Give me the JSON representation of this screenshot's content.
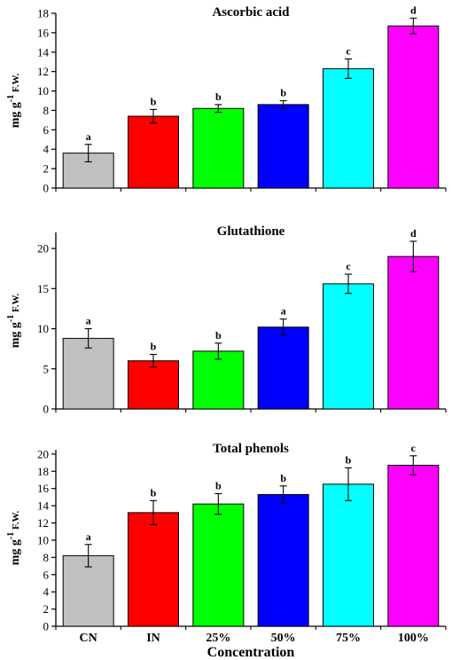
{
  "figure": {
    "xlabel": "Concentration",
    "categories": [
      "CN",
      "IN",
      "25%",
      "50%",
      "75%",
      "100%"
    ],
    "bar_colors": [
      "#c0c0c0",
      "#ff0000",
      "#00ff00",
      "#0000ff",
      "#00ffff",
      "#ff00ff"
    ]
  },
  "chart_data": [
    {
      "type": "bar",
      "title": "Ascorbic acid",
      "ylabel": "mg g-1 F.W.",
      "ylabel_parts": {
        "main": "mg g",
        "sup": "-1",
        "tail": " F.W."
      },
      "categories": [
        "CN",
        "IN",
        "25%",
        "50%",
        "75%",
        "100%"
      ],
      "values": [
        3.6,
        7.4,
        8.2,
        8.6,
        12.3,
        16.7
      ],
      "errors": [
        0.9,
        0.7,
        0.4,
        0.4,
        1.0,
        0.8
      ],
      "letters": [
        "a",
        "b",
        "b",
        "b",
        "c",
        "d"
      ],
      "ylim": [
        0,
        18
      ],
      "yticks": [
        0,
        2,
        4,
        6,
        8,
        10,
        12,
        14,
        16,
        18
      ]
    },
    {
      "type": "bar",
      "title": "Glutathione",
      "ylabel": "mg g-1 F.W.",
      "ylabel_parts": {
        "main": "mg g",
        "sup": "-1",
        "tail": " F.W."
      },
      "categories": [
        "CN",
        "IN",
        "25%",
        "50%",
        "75%",
        "100%"
      ],
      "values": [
        8.8,
        6.0,
        7.2,
        10.2,
        15.6,
        19.0
      ],
      "errors": [
        1.2,
        0.8,
        1.0,
        1.0,
        1.2,
        1.9
      ],
      "letters": [
        "a",
        "b",
        "b",
        "a",
        "c",
        "d"
      ],
      "ylim": [
        0,
        22
      ],
      "yticks": [
        0,
        5,
        10,
        15,
        20
      ]
    },
    {
      "type": "bar",
      "title": "Total phenols",
      "ylabel": "mg g-1 F.W.",
      "ylabel_parts": {
        "main": "mg g",
        "sup": "-1",
        "tail": " F.W."
      },
      "categories": [
        "CN",
        "IN",
        "25%",
        "50%",
        "75%",
        "100%"
      ],
      "values": [
        8.2,
        13.2,
        14.2,
        15.3,
        16.5,
        18.7
      ],
      "errors": [
        1.3,
        1.4,
        1.2,
        1.0,
        1.9,
        1.1
      ],
      "letters": [
        "a",
        "b",
        "b",
        "b",
        "b",
        "c"
      ],
      "ylim": [
        0,
        20.5
      ],
      "yticks": [
        0,
        2,
        4,
        6,
        8,
        10,
        12,
        14,
        16,
        18,
        20
      ]
    }
  ]
}
